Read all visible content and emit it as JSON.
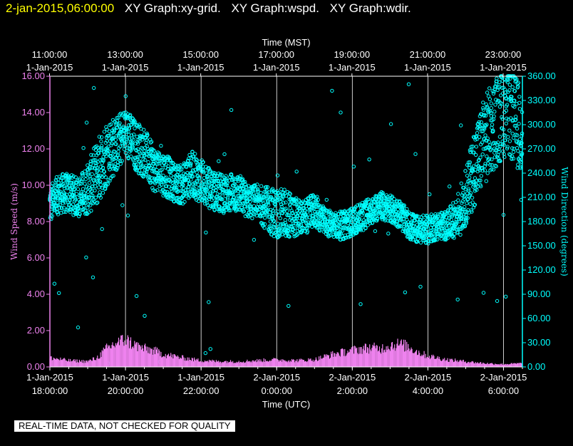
{
  "header": {
    "timestamp": "2-jan-2015,06:00:00",
    "graphs": [
      "XY Graph:xy-grid.",
      "XY Graph:wspd.",
      "XY Graph:wdir."
    ]
  },
  "footer": {
    "quality_note": "REAL-TIME DATA, NOT CHECKED FOR QUALITY"
  },
  "colors": {
    "speed": "#ee82ee",
    "direction": "#00ffff",
    "header_timestamp": "#ffff00",
    "axes": "#ffffff"
  },
  "chart_data": {
    "type": "scatter",
    "title": "",
    "top_axis": {
      "label": "Time (MST)",
      "ticks": [
        {
          "time": "11:00:00",
          "date": "1-Jan-2015"
        },
        {
          "time": "13:00:00",
          "date": "1-Jan-2015"
        },
        {
          "time": "15:00:00",
          "date": "1-Jan-2015"
        },
        {
          "time": "17:00:00",
          "date": "1-Jan-2015"
        },
        {
          "time": "19:00:00",
          "date": "1-Jan-2015"
        },
        {
          "time": "21:00:00",
          "date": "1-Jan-2015"
        },
        {
          "time": "23:00:00",
          "date": "1-Jan-2015"
        }
      ]
    },
    "bottom_axis": {
      "label": "Time (UTC)",
      "range": [
        "1-Jan-2015 18:00:00",
        "2-Jan-2015 06:30:00"
      ],
      "ticks": [
        {
          "date": "1-Jan-2015",
          "time": "18:00:00"
        },
        {
          "date": "1-Jan-2015",
          "time": "20:00:00"
        },
        {
          "date": "1-Jan-2015",
          "time": "22:00:00"
        },
        {
          "date": "2-Jan-2015",
          "time": "0:00:00"
        },
        {
          "date": "2-Jan-2015",
          "time": "2:00:00"
        },
        {
          "date": "2-Jan-2015",
          "time": "4:00:00"
        },
        {
          "date": "2-Jan-2015",
          "time": "6:00:00"
        }
      ]
    },
    "y_left": {
      "label": "Wind Speed (m/s)",
      "ylim": [
        0,
        16
      ],
      "ticks": [
        "0.00",
        "2.00",
        "4.00",
        "6.00",
        "8.00",
        "10.00",
        "12.00",
        "14.00",
        "16.00"
      ]
    },
    "y_right": {
      "label": "Wind Direction (degrees)",
      "ylim": [
        0,
        360
      ],
      "ticks": [
        "0.00",
        "30.00",
        "60.00",
        "90.00",
        "120.00",
        "150.00",
        "180.00",
        "210.00",
        "240.00",
        "270.00",
        "300.00",
        "330.00",
        "360.00"
      ]
    },
    "grid": "vertical lines at bottom-axis ticks",
    "series": [
      {
        "key": "wspd",
        "axis": "left",
        "style": "bars",
        "x_hours_utc": [
          18.0,
          18.5,
          19.0,
          19.25,
          19.5,
          19.75,
          20.0,
          20.25,
          20.5,
          20.75,
          21.0,
          21.5,
          22.0,
          22.5,
          23.0,
          23.5,
          24.0,
          24.5,
          25.0,
          25.5,
          26.0,
          26.25,
          26.5,
          26.75,
          27.0,
          27.25,
          27.5,
          27.75,
          28.0,
          28.5,
          29.0,
          29.5,
          30.0,
          30.5
        ],
        "values": [
          0.5,
          0.35,
          0.3,
          0.5,
          1.0,
          1.3,
          1.5,
          1.2,
          1.0,
          0.9,
          0.7,
          0.5,
          0.35,
          0.3,
          0.3,
          0.35,
          0.4,
          0.35,
          0.4,
          0.7,
          0.9,
          1.0,
          1.05,
          1.0,
          1.2,
          1.25,
          1.1,
          0.8,
          0.6,
          0.4,
          0.3,
          0.2,
          0.15,
          0.2
        ]
      },
      {
        "key": "wdir",
        "axis": "right",
        "style": "scatter",
        "x_hours_utc": [
          18.0,
          18.25,
          18.5,
          18.75,
          19.0,
          19.25,
          19.5,
          19.75,
          20.0,
          20.25,
          20.5,
          20.75,
          21.0,
          21.25,
          21.5,
          21.75,
          22.0,
          22.25,
          22.5,
          22.75,
          23.0,
          23.25,
          23.5,
          23.75,
          24.0,
          24.25,
          24.5,
          24.75,
          25.0,
          25.25,
          25.5,
          25.75,
          26.0,
          26.25,
          26.5,
          26.75,
          27.0,
          27.25,
          27.5,
          27.75,
          28.0,
          28.25,
          28.5,
          28.75,
          29.0,
          29.25,
          29.5,
          29.75,
          30.0,
          30.25,
          30.5
        ],
        "values": [
          200,
          215,
          215,
          210,
          220,
          240,
          265,
          275,
          290,
          275,
          265,
          245,
          240,
          230,
          225,
          240,
          230,
          220,
          215,
          215,
          215,
          205,
          205,
          195,
          190,
          190,
          185,
          185,
          195,
          180,
          175,
          175,
          180,
          185,
          195,
          200,
          195,
          190,
          175,
          170,
          170,
          175,
          175,
          185,
          210,
          250,
          280,
          300,
          315,
          310,
          290
        ],
        "spread_degrees": [
          35,
          35,
          35,
          35,
          45,
          60,
          60,
          50,
          45,
          45,
          45,
          40,
          40,
          35,
          35,
          40,
          40,
          35,
          35,
          35,
          35,
          30,
          30,
          40,
          45,
          45,
          35,
          30,
          30,
          25,
          25,
          25,
          25,
          25,
          25,
          25,
          25,
          25,
          25,
          25,
          25,
          25,
          25,
          35,
          50,
          70,
          80,
          80,
          80,
          80,
          80
        ]
      }
    ]
  }
}
